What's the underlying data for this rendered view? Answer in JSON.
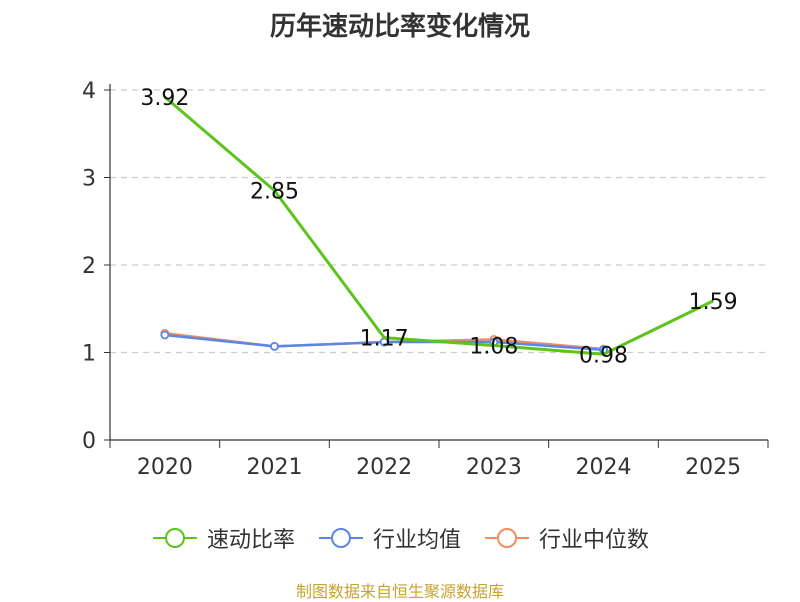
{
  "title": "历年速动比率变化情况",
  "source": "制图数据来自恒生聚源数据库",
  "colors": {
    "速动比率": "#5cc41a",
    "行业均值": "#5b86e5",
    "行业中位数": "#f28e5d"
  },
  "chart_data": {
    "type": "line",
    "categories": [
      "2020",
      "2021",
      "2022",
      "2023",
      "2024",
      "2025"
    ],
    "ylim": [
      0,
      4
    ],
    "yticks": [
      0,
      1,
      2,
      3,
      4
    ],
    "grid": true,
    "legend_position": "bottom",
    "series": [
      {
        "name": "速动比率",
        "values": [
          3.92,
          2.85,
          1.17,
          1.08,
          0.98,
          1.59
        ],
        "labels": [
          "3.92",
          "2.85",
          "1.17",
          "1.08",
          "0.98",
          "1.59"
        ],
        "marker": "none"
      },
      {
        "name": "行业均值",
        "values": [
          1.2,
          1.07,
          1.12,
          1.12,
          1.03,
          null
        ],
        "marker": "circle"
      },
      {
        "name": "行业中位数",
        "values": [
          1.22,
          1.07,
          1.12,
          1.15,
          1.04,
          null
        ],
        "marker": "circle"
      }
    ]
  }
}
